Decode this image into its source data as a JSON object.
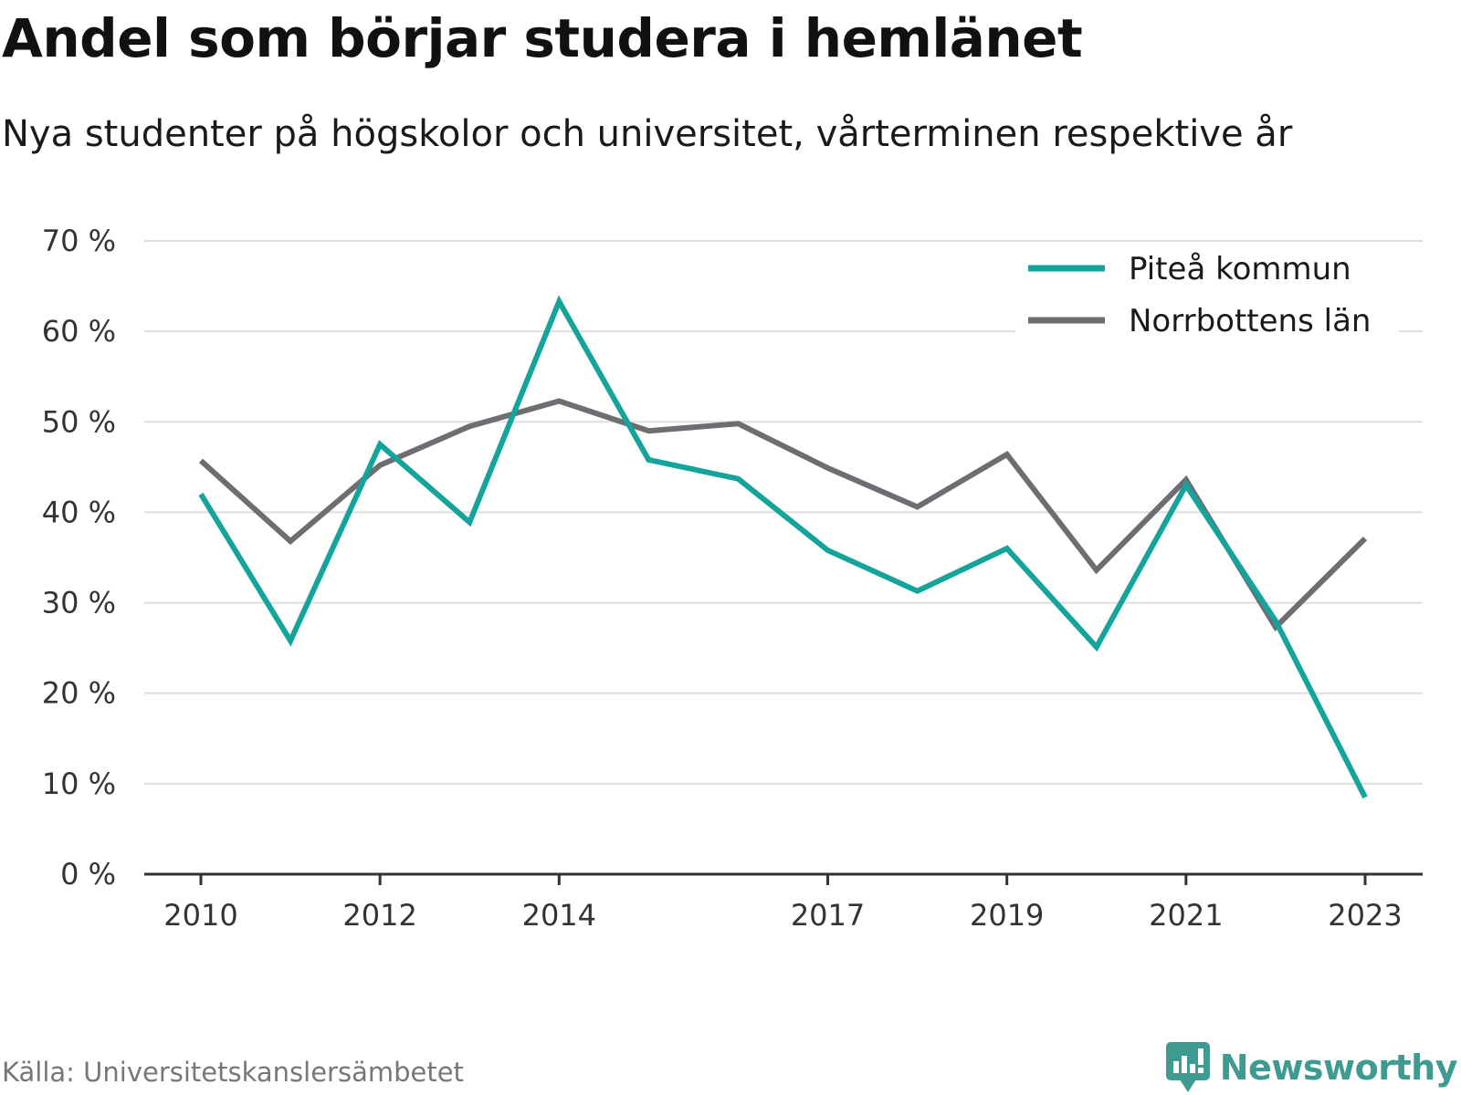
{
  "title": "Andel som börjar studera i hemlänet",
  "subtitle": "Nya studenter på högskolor och universitet, vårterminen respektive år",
  "source": "Källa: Universitetskanslersämbetet",
  "brand": {
    "name": "Newsworthy",
    "icon": "newsworthy-logo-icon",
    "color": "#3d9b91"
  },
  "chart_data": {
    "type": "line",
    "title": "Andel som börjar studera i hemlänet",
    "subtitle": "Nya studenter på högskolor och universitet, vårterminen respektive år",
    "xlabel": "",
    "ylabel": "",
    "x": [
      2010,
      2011,
      2012,
      2013,
      2014,
      2015,
      2016,
      2017,
      2018,
      2019,
      2020,
      2021,
      2022,
      2023
    ],
    "x_tick_labels": [
      "2010",
      "2012",
      "2014",
      "2017",
      "2019",
      "2021",
      "2023"
    ],
    "x_tick_values": [
      2010,
      2012,
      2014,
      2017,
      2019,
      2021,
      2023
    ],
    "ylim": [
      0,
      70
    ],
    "y_ticks": [
      0,
      10,
      20,
      30,
      40,
      50,
      60,
      70
    ],
    "y_tick_labels": [
      "0 %",
      "10 %",
      "20 %",
      "30 %",
      "40 %",
      "50 %",
      "60 %",
      "70 %"
    ],
    "grid": "horizontal",
    "legend_position": "top-right",
    "series": [
      {
        "name": "Piteå kommun",
        "color": "#14a49b",
        "values": [
          42.0,
          25.8,
          47.5,
          38.9,
          63.3,
          45.8,
          43.7,
          35.8,
          31.3,
          36.0,
          25.1,
          43.0,
          28.0,
          8.5
        ]
      },
      {
        "name": "Norrbottens län",
        "color": "#6d6d72",
        "values": [
          45.7,
          36.8,
          45.2,
          49.5,
          52.3,
          49.0,
          49.8,
          44.9,
          40.6,
          46.4,
          33.6,
          43.6,
          27.3,
          37.1
        ]
      }
    ]
  }
}
